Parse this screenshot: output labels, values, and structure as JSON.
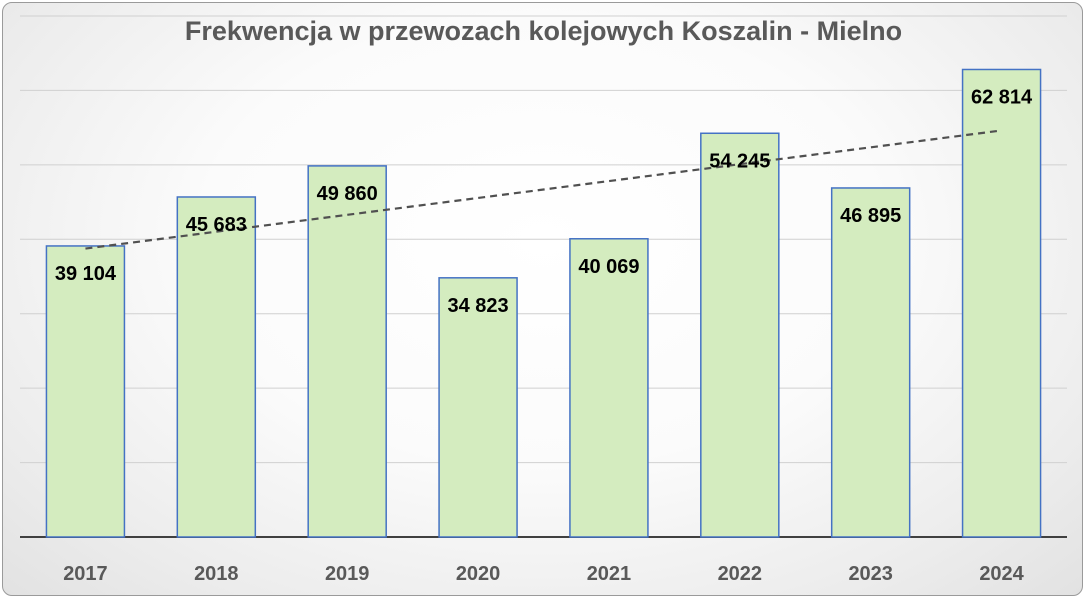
{
  "chart_data": {
    "type": "bar",
    "title": "Frekwencja w przewozach kolejowych Koszalin - Mielno",
    "xlabel": "",
    "ylabel": "",
    "categories": [
      "2017",
      "2018",
      "2019",
      "2020",
      "2021",
      "2022",
      "2023",
      "2024"
    ],
    "values": [
      39104,
      45683,
      49860,
      34823,
      40069,
      54245,
      46895,
      62814
    ],
    "data_labels": [
      "39 104",
      "45 683",
      "49 860",
      "34 823",
      "40 069",
      "54 245",
      "46 895",
      "62 814"
    ],
    "ylim": [
      0,
      70000
    ],
    "y_grid_step": 10000,
    "y_tick_labels_visible": false,
    "grid": true,
    "legend": "none",
    "trendline": "linear",
    "colors": {
      "bar_fill": "#d4ecbf",
      "bar_stroke": "#4472c4",
      "gridline": "#d0d0d0",
      "axis": "#404040",
      "trendline": "#505050"
    }
  }
}
